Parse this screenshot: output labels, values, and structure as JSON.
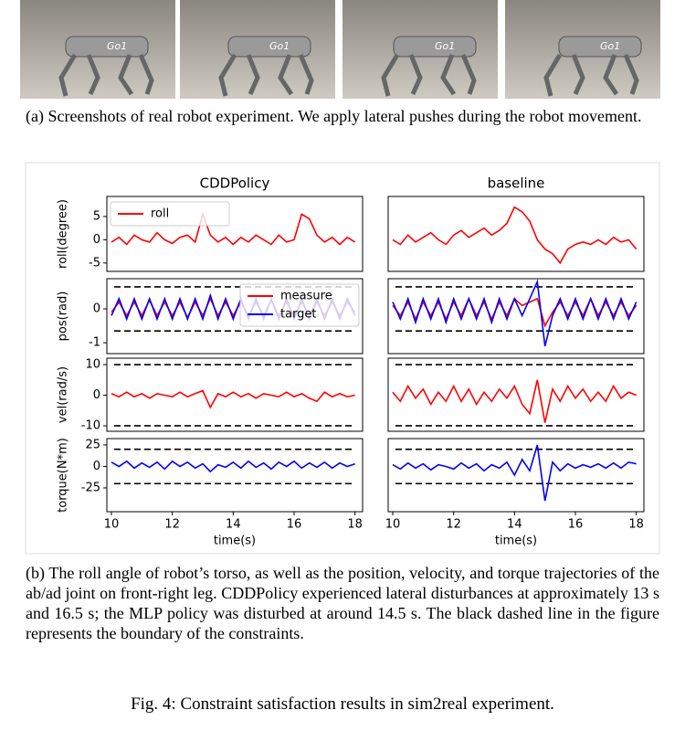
{
  "photos": [
    {
      "label": "Go1"
    },
    {
      "label": "Go1"
    },
    {
      "label": "Go1"
    },
    {
      "label": "Go1"
    }
  ],
  "caption_a": "(a) Screenshots of real robot experiment. We apply lateral pushes during the robot movement.",
  "chart_data": [
    {
      "type": "line",
      "title": "CDDPolicy",
      "ylabel": "roll(degree)",
      "legend": "upper left",
      "x": [
        10,
        10.25,
        10.5,
        10.75,
        11,
        11.25,
        11.5,
        11.75,
        12,
        12.25,
        12.5,
        12.75,
        13,
        13.25,
        13.5,
        13.75,
        14,
        14.25,
        14.5,
        14.75,
        15,
        15.25,
        15.5,
        15.75,
        16,
        16.25,
        16.5,
        16.75,
        17,
        17.25,
        17.5,
        17.75,
        18
      ],
      "xlim": [
        9.85,
        18.25
      ],
      "ylim": [
        -6.8,
        9.3
      ],
      "yticks": [
        -5,
        0,
        5
      ],
      "series": [
        {
          "name": "roll",
          "color": "#ff0000",
          "values": [
            -0.5,
            0.5,
            -1,
            1,
            0,
            -0.5,
            1.5,
            0,
            -0.8,
            0.5,
            1,
            -0.5,
            5.5,
            1,
            -0.5,
            0.5,
            -1,
            0.5,
            -0.5,
            1,
            0,
            -1,
            1,
            -0.5,
            0,
            5.5,
            4.5,
            1,
            -0.5,
            0.5,
            -1,
            0.5,
            -0.5
          ]
        }
      ]
    },
    {
      "type": "line",
      "title": "baseline",
      "x": [
        10,
        10.25,
        10.5,
        10.75,
        11,
        11.25,
        11.5,
        11.75,
        12,
        12.25,
        12.5,
        12.75,
        13,
        13.25,
        13.5,
        13.75,
        14,
        14.25,
        14.5,
        14.75,
        15,
        15.25,
        15.5,
        15.75,
        16,
        16.25,
        16.5,
        16.75,
        17,
        17.25,
        17.5,
        17.75,
        18
      ],
      "xlim": [
        9.85,
        18.25
      ],
      "ylim": [
        -6.8,
        9.3
      ],
      "series": [
        {
          "color": "#ff0000",
          "values": [
            0,
            -1,
            1,
            -0.5,
            0.5,
            1.5,
            0,
            -1,
            1,
            2,
            0.5,
            1.5,
            2.5,
            1,
            2,
            3.5,
            7,
            6,
            4,
            0,
            -2,
            -3,
            -5,
            -2,
            -1,
            -0.5,
            -1,
            0,
            -1,
            0.5,
            -0.5,
            0,
            -2
          ]
        }
      ]
    },
    {
      "type": "line",
      "ylabel": "pos(rad)",
      "legend": "upper right",
      "x": [
        10,
        10.25,
        10.5,
        10.75,
        11,
        11.25,
        11.5,
        11.75,
        12,
        12.25,
        12.5,
        12.75,
        13,
        13.25,
        13.5,
        13.75,
        14,
        14.25,
        14.5,
        14.75,
        15,
        15.25,
        15.5,
        15.75,
        16,
        16.25,
        16.5,
        16.75,
        17,
        17.25,
        17.5,
        17.75,
        18
      ],
      "xlim": [
        9.85,
        18.25
      ],
      "ylim": [
        -1.32,
        0.89
      ],
      "yticks": [
        -1,
        0
      ],
      "bounds": [
        0.65,
        -0.65
      ],
      "series": [
        {
          "name": "measure",
          "color": "#ff0000",
          "values": [
            -0.1,
            0.2,
            -0.2,
            0.2,
            -0.2,
            0.25,
            -0.2,
            0.2,
            -0.2,
            0.2,
            -0.25,
            0.2,
            -0.2,
            0.3,
            -0.2,
            0.2,
            -0.2,
            0.2,
            -0.2,
            0.2,
            -0.2,
            0.25,
            -0.2,
            0.2,
            -0.2,
            0.2,
            -0.2,
            0.2,
            -0.2,
            0.2,
            -0.2,
            0.2,
            -0.1
          ]
        },
        {
          "name": "target",
          "color": "#0000ff",
          "values": [
            -0.2,
            0.3,
            -0.3,
            0.3,
            -0.3,
            0.3,
            -0.3,
            0.3,
            -0.3,
            0.3,
            -0.3,
            0.3,
            -0.3,
            0.4,
            -0.3,
            0.3,
            -0.3,
            0.3,
            -0.3,
            0.3,
            -0.3,
            0.3,
            -0.3,
            0.3,
            -0.3,
            0.3,
            -0.3,
            0.3,
            -0.3,
            0.3,
            -0.3,
            0.3,
            -0.2
          ]
        }
      ]
    },
    {
      "type": "line",
      "x": [
        10,
        10.25,
        10.5,
        10.75,
        11,
        11.25,
        11.5,
        11.75,
        12,
        12.25,
        12.5,
        12.75,
        13,
        13.25,
        13.5,
        13.75,
        14,
        14.25,
        14.5,
        14.75,
        15,
        15.25,
        15.5,
        15.75,
        16,
        16.25,
        16.5,
        16.75,
        17,
        17.25,
        17.5,
        17.75,
        18
      ],
      "xlim": [
        9.85,
        18.25
      ],
      "ylim": [
        -1.32,
        0.89
      ],
      "bounds": [
        0.65,
        -0.65
      ],
      "series": [
        {
          "color": "#ff0000",
          "values": [
            0.1,
            -0.2,
            0.2,
            -0.3,
            0.2,
            -0.2,
            0.2,
            -0.3,
            0.2,
            -0.2,
            0.3,
            -0.2,
            0.2,
            -0.3,
            0.2,
            -0.2,
            0.3,
            0.1,
            0.2,
            0.3,
            -0.5,
            -0.1,
            0.2,
            -0.2,
            0.2,
            -0.2,
            0.3,
            -0.2,
            0.2,
            -0.2,
            0.2,
            -0.2,
            0.1
          ]
        },
        {
          "color": "#0000ff",
          "values": [
            0.2,
            -0.3,
            0.3,
            -0.4,
            0.3,
            -0.3,
            0.3,
            -0.4,
            0.3,
            -0.3,
            0.3,
            -0.3,
            0.3,
            -0.4,
            0.3,
            -0.3,
            0.3,
            -0.2,
            0.3,
            0.8,
            -1.1,
            -0.2,
            0.3,
            -0.3,
            0.3,
            -0.3,
            0.3,
            -0.3,
            0.3,
            -0.3,
            0.3,
            -0.3,
            0.2
          ]
        }
      ]
    },
    {
      "type": "line",
      "ylabel": "vel(rad/s)",
      "x": [
        10,
        10.25,
        10.5,
        10.75,
        11,
        11.25,
        11.5,
        11.75,
        12,
        12.25,
        12.5,
        12.75,
        13,
        13.25,
        13.5,
        13.75,
        14,
        14.25,
        14.5,
        14.75,
        15,
        15.25,
        15.5,
        15.75,
        16,
        16.25,
        16.5,
        16.75,
        17,
        17.25,
        17.5,
        17.75,
        18
      ],
      "xlim": [
        9.85,
        18.25
      ],
      "ylim": [
        -11.8,
        12.1
      ],
      "yticks": [
        -10,
        0,
        10
      ],
      "bounds": [
        10,
        -10
      ],
      "series": [
        {
          "color": "#ff0000",
          "values": [
            0.5,
            -0.5,
            1,
            -0.5,
            0.5,
            -1,
            0.5,
            0,
            -0.5,
            1,
            -0.5,
            0.5,
            1.5,
            -4,
            0.5,
            -0.5,
            1,
            -0.5,
            0.5,
            -1,
            0.5,
            0,
            -0.5,
            1,
            -0.5,
            0.5,
            -1,
            -2,
            1,
            -0.5,
            0.5,
            -0.5,
            0
          ]
        }
      ]
    },
    {
      "type": "line",
      "x": [
        10,
        10.25,
        10.5,
        10.75,
        11,
        11.25,
        11.5,
        11.75,
        12,
        12.25,
        12.5,
        12.75,
        13,
        13.25,
        13.5,
        13.75,
        14,
        14.25,
        14.5,
        14.75,
        15,
        15.25,
        15.5,
        15.75,
        16,
        16.25,
        16.5,
        16.75,
        17,
        17.25,
        17.5,
        17.75,
        18
      ],
      "xlim": [
        9.85,
        18.25
      ],
      "ylim": [
        -11.8,
        12.1
      ],
      "bounds": [
        10,
        -10
      ],
      "series": [
        {
          "color": "#ff0000",
          "values": [
            1,
            -2,
            3,
            -1,
            2,
            -3,
            1,
            -2,
            3,
            -2,
            2,
            -3,
            1,
            -2,
            2,
            -1,
            3,
            -3,
            -6,
            5,
            -9,
            2,
            -2,
            3,
            -1,
            2,
            -2,
            1,
            -2,
            3,
            -1,
            1,
            0
          ]
        }
      ]
    },
    {
      "type": "line",
      "ylabel": "torque(N*m)",
      "xlabel": "time(s)",
      "x": [
        10,
        10.25,
        10.5,
        10.75,
        11,
        11.25,
        11.5,
        11.75,
        12,
        12.25,
        12.5,
        12.75,
        13,
        13.25,
        13.5,
        13.75,
        14,
        14.25,
        14.5,
        14.75,
        15,
        15.25,
        15.5,
        15.75,
        16,
        16.25,
        16.5,
        16.75,
        17,
        17.25,
        17.5,
        17.75,
        18
      ],
      "xlim": [
        9.85,
        18.25
      ],
      "ylim": [
        -52.7,
        32.4
      ],
      "xticks": [
        10,
        12,
        14,
        16,
        18
      ],
      "yticks": [
        -25,
        0,
        25
      ],
      "bounds": [
        20,
        -20
      ],
      "series": [
        {
          "color": "#0000ff",
          "values": [
            5,
            0,
            6,
            -2,
            4,
            -1,
            5,
            -3,
            6,
            0,
            5,
            -2,
            3,
            -6,
            2,
            -1,
            5,
            -2,
            6,
            -1,
            4,
            -3,
            5,
            0,
            6,
            -2,
            4,
            -1,
            5,
            -2,
            4,
            0,
            3
          ]
        }
      ]
    },
    {
      "type": "line",
      "xlabel": "time(s)",
      "x": [
        10,
        10.25,
        10.5,
        10.75,
        11,
        11.25,
        11.5,
        11.75,
        12,
        12.25,
        12.5,
        12.75,
        13,
        13.25,
        13.5,
        13.75,
        14,
        14.25,
        14.5,
        14.75,
        15,
        15.25,
        15.5,
        15.75,
        16,
        16.25,
        16.5,
        16.75,
        17,
        17.25,
        17.5,
        17.75,
        18
      ],
      "xlim": [
        9.85,
        18.25
      ],
      "ylim": [
        -52.7,
        32.4
      ],
      "xticks": [
        10,
        12,
        14,
        16,
        18
      ],
      "bounds": [
        20,
        -20
      ],
      "series": [
        {
          "color": "#0000ff",
          "values": [
            2,
            -3,
            4,
            -2,
            3,
            -4,
            2,
            0,
            -3,
            4,
            -2,
            3,
            -5,
            2,
            -2,
            5,
            -10,
            8,
            -5,
            25,
            -40,
            5,
            -5,
            3,
            -2,
            2,
            -1,
            3,
            -2,
            4,
            -2,
            5,
            3
          ]
        }
      ]
    }
  ],
  "caption_b": "(b) The roll angle of robot’s torso, as well as the position, velocity, and torque trajectories of the ab/ad joint on front-right leg. CDDPolicy experienced lateral disturbances at approximately 13 s and 16.5 s; the MLP policy was disturbed at around 14.5 s. The black dashed line in the figure represents the boundary of the constraints.",
  "figure_caption": "Fig. 4: Constraint satisfaction results in sim2real experiment."
}
